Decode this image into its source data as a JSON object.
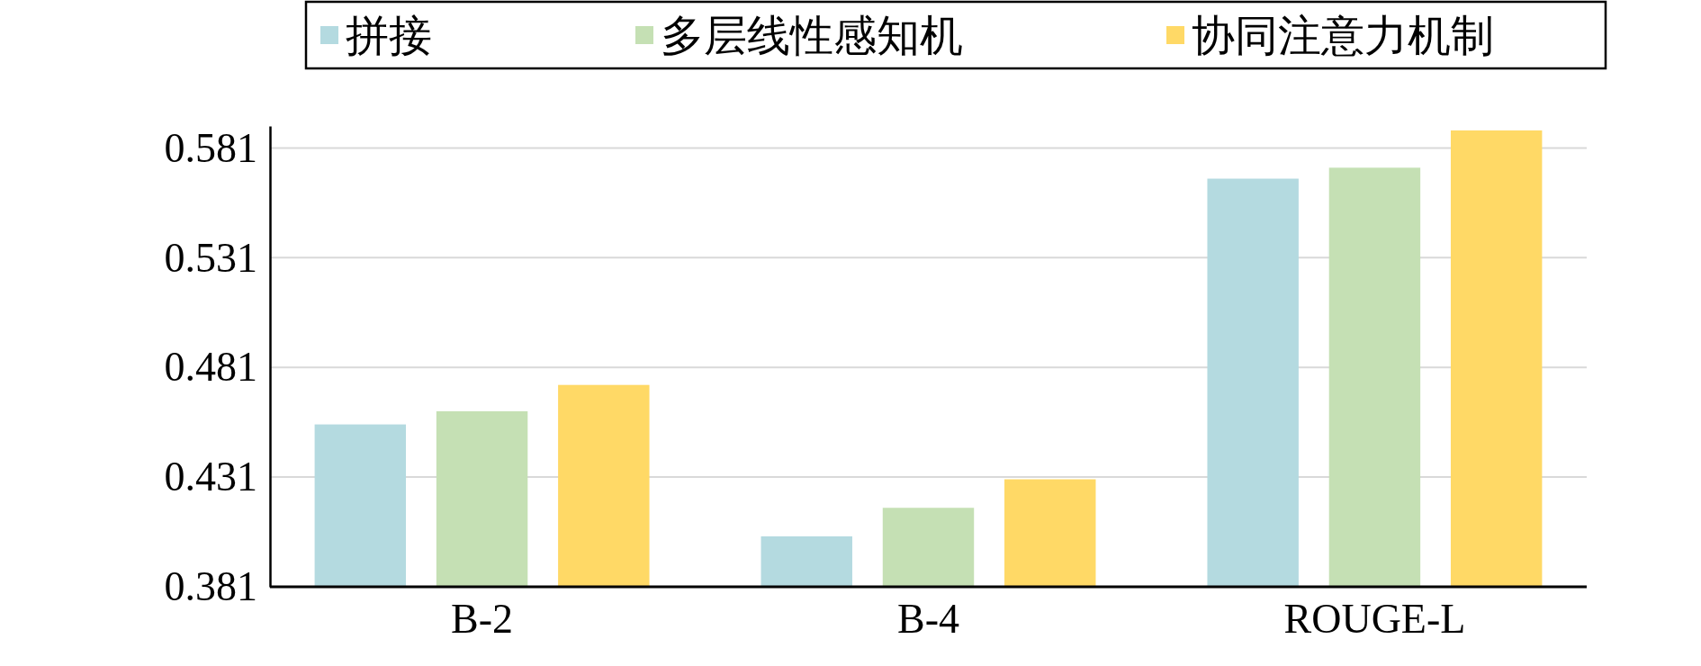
{
  "chart_data": {
    "type": "bar",
    "categories": [
      "B-2",
      "B-4",
      "ROUGE-L"
    ],
    "series": [
      {
        "name": "拼接",
        "color": "#b4dae0",
        "values": [
          0.455,
          0.404,
          0.567
        ]
      },
      {
        "name": "多层线性感知机",
        "color": "#c5e0b4",
        "values": [
          0.461,
          0.417,
          0.572
        ]
      },
      {
        "name": "协同注意力机制",
        "color": "#ffd966",
        "values": [
          0.473,
          0.43,
          0.589
        ]
      }
    ],
    "ylim": [
      0.381,
      0.591
    ],
    "yticks": [
      0.381,
      0.431,
      0.481,
      0.531,
      0.581
    ],
    "grid": "y",
    "legend": "top"
  }
}
